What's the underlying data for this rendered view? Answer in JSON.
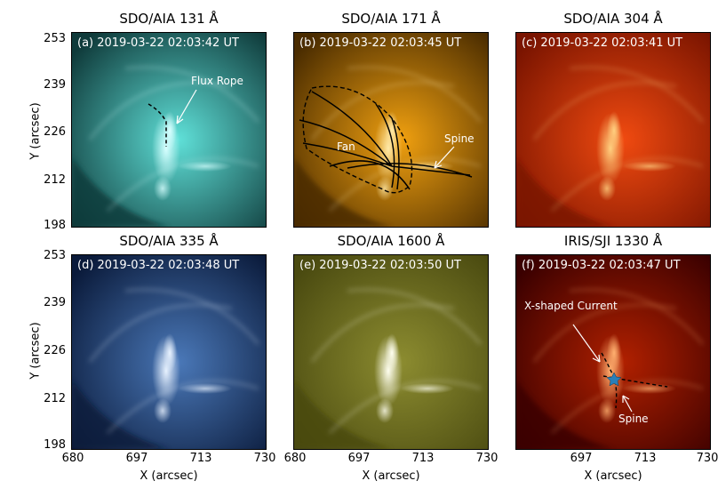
{
  "panels": [
    {
      "title": "SDO/AIA 131 Å",
      "stamp": "(a) 2019-03-22 02:03:42 UT",
      "base": "#0f3a3a",
      "glow": "#5fe0d8",
      "hot": "#d8ffff"
    },
    {
      "title": "SDO/AIA 171 Å",
      "stamp": "(b) 2019-03-22 02:03:45 UT",
      "base": "#4a2c00",
      "glow": "#f0a010",
      "hot": "#ffe9a8"
    },
    {
      "title": "SDO/AIA 304 Å",
      "stamp": "(c) 2019-03-22 02:03:41 UT",
      "base": "#7a1400",
      "glow": "#f04a10",
      "hot": "#ffd080"
    },
    {
      "title": "SDO/AIA 335 Å",
      "stamp": "(d) 2019-03-22 02:03:48 UT",
      "base": "#0a1a3a",
      "glow": "#4a78b8",
      "hot": "#e8f2ff"
    },
    {
      "title": "SDO/AIA 1600 Å",
      "stamp": "(e) 2019-03-22 02:03:50 UT",
      "base": "#4a4a10",
      "glow": "#8c8c30",
      "hot": "#fffff0"
    },
    {
      "title": "IRIS/SJI 1330 Å",
      "stamp": "(f) 2019-03-22 02:03:47 UT",
      "base": "#3a0000",
      "glow": "#b02000",
      "hot": "#ffb070"
    }
  ],
  "yticks": [
    "253",
    "239",
    "226",
    "212",
    "198"
  ],
  "xticks": [
    "680",
    "697",
    "713",
    "730"
  ],
  "ylabel": "Y (arcsec)",
  "xlabel": "X (arcsec)",
  "annotations": {
    "flux_rope": "Flux Rope",
    "fan": "Fan",
    "spine_b": "Spine",
    "x_current": "X-shaped Current",
    "spine_f": "Spine"
  },
  "colors": {
    "marker": "#2a7fb8"
  }
}
